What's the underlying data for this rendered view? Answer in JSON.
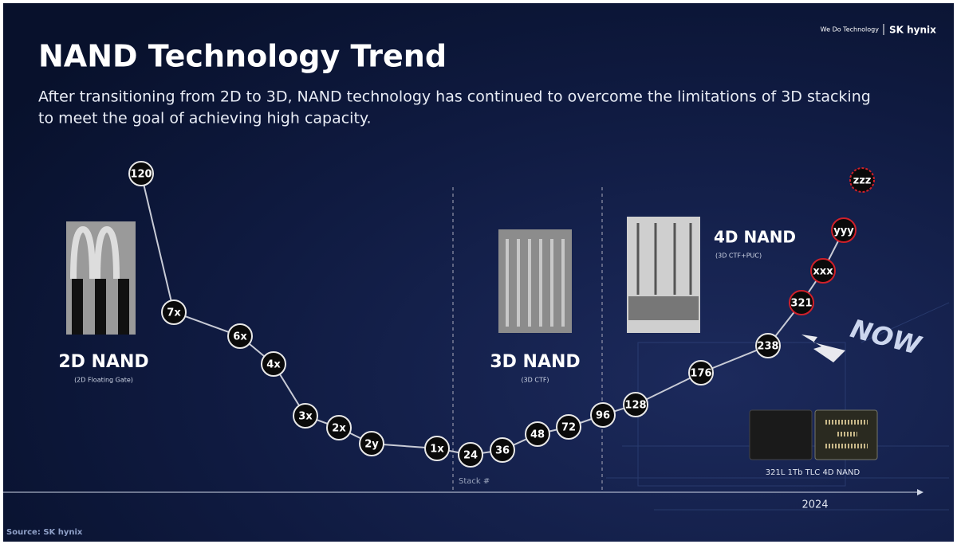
{
  "header": {
    "title": "NAND Technology Trend",
    "subtitle_lines": [
      "After transitioning from 2D to 3D, NAND technology has continued to overcome the limitations of 3D stacking",
      "to meet the goal of achieving high capacity."
    ]
  },
  "logo": {
    "tagline": "We Do Technology",
    "brand": "SK hynix"
  },
  "sections": [
    {
      "label": "2D NAND",
      "sublabel": "(2D Floating Gate)"
    },
    {
      "label": "3D NAND",
      "sublabel": "(3D CTF)"
    },
    {
      "label": "4D NAND",
      "sublabel": "(3D CTF+PUC)"
    }
  ],
  "nodes": [
    {
      "label": "120"
    },
    {
      "label": "7x"
    },
    {
      "label": "6x"
    },
    {
      "label": "4x"
    },
    {
      "label": "3x"
    },
    {
      "label": "2x"
    },
    {
      "label": "2y"
    },
    {
      "label": "1x"
    },
    {
      "label": "24"
    },
    {
      "label": "36"
    },
    {
      "label": "48"
    },
    {
      "label": "72"
    },
    {
      "label": "96"
    },
    {
      "label": "128"
    },
    {
      "label": "176"
    },
    {
      "label": "238"
    },
    {
      "label": "321"
    },
    {
      "label": "xxx"
    },
    {
      "label": "yyy"
    },
    {
      "label": "zzz"
    }
  ],
  "annotations": {
    "stack": "Stack #",
    "now": "NOW",
    "chip_caption": "321L 1Tb TLC 4D NAND",
    "year": "2024",
    "source": "Source: SK hynix"
  }
}
